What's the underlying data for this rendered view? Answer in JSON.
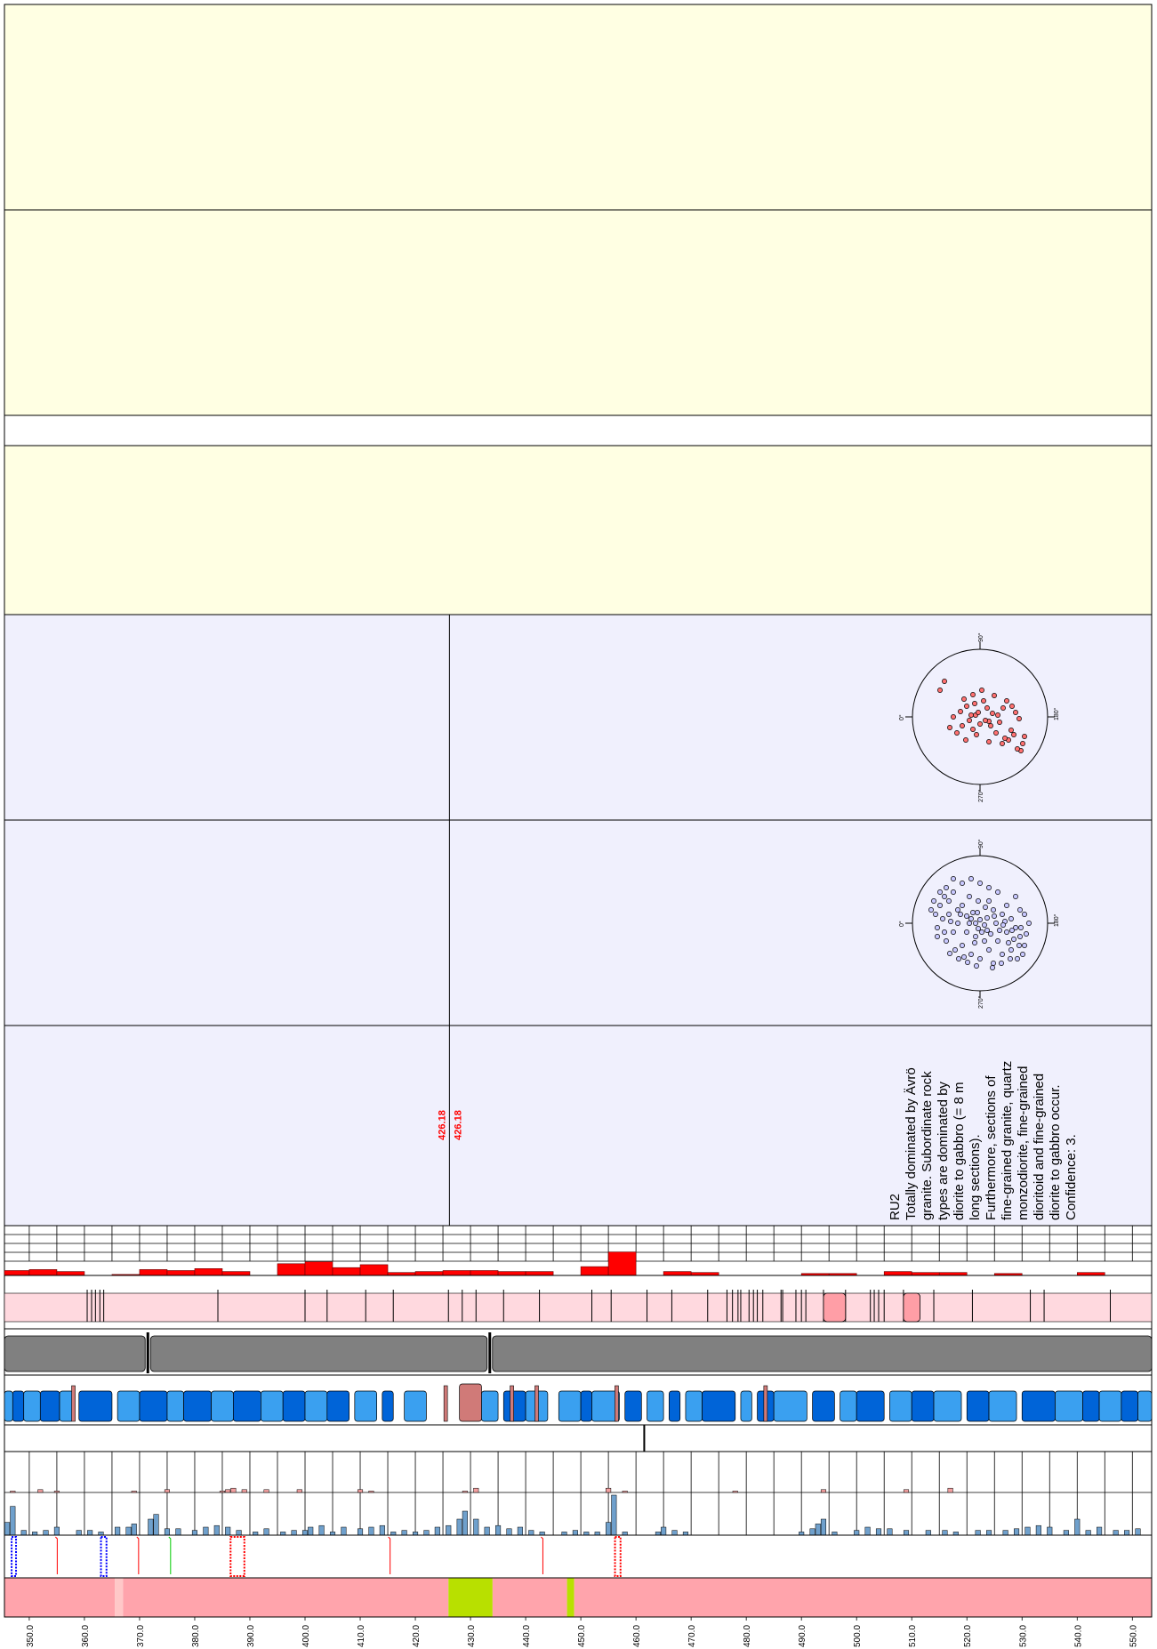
{
  "colors": {
    "yellow_panel": "#ffffe3",
    "lilac_panel": "#f0f0fd",
    "red_bar": "#ff0000",
    "pink_band": "#ffd9df",
    "pink_segment": "#ff9ea6",
    "grey_band": "#808080",
    "blue_dark": "#0064d8",
    "blue_light": "#3aa0f0",
    "brown_segment": "#d07a78",
    "hist_blue": "#6fa0cc",
    "hist_red": "#f3a0a0",
    "rock_pink": "#ffa4ac",
    "rock_green": "#b8e000",
    "rock_light": "#ffc8c8"
  },
  "marker_label": "426.18",
  "rock_unit_text": [
    "RU2",
    "Totally dominated by Ävrö",
    "granite. Subordinate rock",
    "types are dominated by",
    "diorite to gabbro (= 8 m",
    "long sections).",
    "Furthermore, sections of",
    "fine-grained granite, quartz",
    "monzodiorite, fine-grained",
    "dioritoid and fine-grained",
    "diorite to gabbro occur.",
    "Confidence: 3."
  ],
  "stereonet_labels": {
    "north": "90°",
    "west": "0°",
    "east": "180°",
    "south": "270°"
  },
  "chart_data": {
    "type": "log",
    "depth_axis": {
      "unit": "m",
      "range": [
        345.5,
        553.5
      ],
      "ticks": [
        "350.0",
        "360.0",
        "370.0",
        "380.0",
        "390.0",
        "400.0",
        "410.0",
        "420.0",
        "430.0",
        "440.0",
        "450.0",
        "460.0",
        "470.0",
        "480.0",
        "490.0",
        "500.0",
        "510.0",
        "520.0",
        "530.0",
        "540.0",
        "550.0"
      ]
    },
    "marker_depth": 426.18,
    "red_frequency": [
      {
        "from": 345.5,
        "to": 350,
        "v": 0.25
      },
      {
        "from": 350,
        "to": 355,
        "v": 0.3
      },
      {
        "from": 355,
        "to": 360,
        "v": 0.2
      },
      {
        "from": 365,
        "to": 370,
        "v": 0.05
      },
      {
        "from": 370,
        "to": 375,
        "v": 0.3
      },
      {
        "from": 375,
        "to": 380,
        "v": 0.25
      },
      {
        "from": 380,
        "to": 385,
        "v": 0.35
      },
      {
        "from": 385,
        "to": 390,
        "v": 0.2
      },
      {
        "from": 395,
        "to": 400,
        "v": 0.6
      },
      {
        "from": 400,
        "to": 405,
        "v": 0.7
      },
      {
        "from": 405,
        "to": 410,
        "v": 0.4
      },
      {
        "from": 410,
        "to": 415,
        "v": 0.55
      },
      {
        "from": 415,
        "to": 420,
        "v": 0.15
      },
      {
        "from": 420,
        "to": 425,
        "v": 0.2
      },
      {
        "from": 425,
        "to": 430,
        "v": 0.25
      },
      {
        "from": 430,
        "to": 435,
        "v": 0.25
      },
      {
        "from": 435,
        "to": 440,
        "v": 0.2
      },
      {
        "from": 440,
        "to": 445,
        "v": 0.2
      },
      {
        "from": 450,
        "to": 455,
        "v": 0.45
      },
      {
        "from": 455,
        "to": 460,
        "v": 1.2
      },
      {
        "from": 465,
        "to": 470,
        "v": 0.2
      },
      {
        "from": 470,
        "to": 475,
        "v": 0.15
      },
      {
        "from": 490,
        "to": 495,
        "v": 0.1
      },
      {
        "from": 495,
        "to": 500,
        "v": 0.1
      },
      {
        "from": 505,
        "to": 510,
        "v": 0.2
      },
      {
        "from": 510,
        "to": 515,
        "v": 0.15
      },
      {
        "from": 515,
        "to": 520,
        "v": 0.15
      },
      {
        "from": 525,
        "to": 530,
        "v": 0.1
      },
      {
        "from": 540,
        "to": 545,
        "v": 0.15
      }
    ],
    "stereonet_red_poles": [
      [
        38,
        20
      ],
      [
        32,
        26
      ],
      [
        10,
        5
      ],
      [
        -5,
        -2
      ],
      [
        0,
        8
      ],
      [
        -20,
        10
      ],
      [
        -15,
        -12
      ],
      [
        -8,
        -25
      ],
      [
        4,
        -18
      ],
      [
        14,
        -4
      ],
      [
        22,
        6
      ],
      [
        26,
        -10
      ],
      [
        40,
        -5
      ],
      [
        44,
        2
      ],
      [
        35,
        15
      ],
      [
        18,
        18
      ],
      [
        -4,
        20
      ],
      [
        -22,
        -6
      ],
      [
        8,
        -10
      ],
      [
        -12,
        4
      ],
      [
        -30,
        0
      ],
      [
        -45,
        -30
      ],
      [
        -40,
        -40
      ],
      [
        25,
        30
      ],
      [
        -2,
        -5
      ],
      [
        6,
        4
      ],
      [
        -10,
        -2
      ],
      [
        12,
        10
      ],
      [
        30,
        -18
      ],
      [
        -16,
        26
      ],
      [
        2,
        -30
      ],
      [
        -26,
        18
      ],
      [
        16,
        -24
      ],
      [
        48,
        30
      ],
      [
        46,
        38
      ],
      [
        42,
        36
      ],
      [
        36,
        -12
      ],
      [
        -6,
        -15
      ],
      [
        20,
        -2
      ],
      [
        -18,
        -20
      ],
      [
        10,
        28
      ],
      [
        -8,
        14
      ],
      [
        50,
        22
      ],
      [
        28,
        24
      ],
      [
        -34,
        12
      ]
    ],
    "stereonet_blue_poles": [
      [
        -40,
        -30
      ],
      [
        -45,
        -20
      ],
      [
        -50,
        -10
      ],
      [
        -38,
        -40
      ],
      [
        -30,
        -35
      ],
      [
        -20,
        -20
      ],
      [
        -10,
        -5
      ],
      [
        -5,
        0
      ],
      [
        0,
        -4
      ],
      [
        5,
        2
      ],
      [
        8,
        -6
      ],
      [
        -2,
        6
      ],
      [
        -8,
        -12
      ],
      [
        -15,
        -8
      ],
      [
        -25,
        -15
      ],
      [
        -35,
        -25
      ],
      [
        -42,
        -5
      ],
      [
        -48,
        5
      ],
      [
        -52,
        -25
      ],
      [
        -30,
        10
      ],
      [
        -20,
        25
      ],
      [
        -10,
        35
      ],
      [
        0,
        40
      ],
      [
        10,
        30
      ],
      [
        20,
        20
      ],
      [
        30,
        10
      ],
      [
        40,
        5
      ],
      [
        45,
        15
      ],
      [
        50,
        25
      ],
      [
        48,
        35
      ],
      [
        42,
        40
      ],
      [
        35,
        30
      ],
      [
        25,
        35
      ],
      [
        15,
        45
      ],
      [
        5,
        20
      ],
      [
        -5,
        15
      ],
      [
        -15,
        10
      ],
      [
        -25,
        0
      ],
      [
        -35,
        -10
      ],
      [
        -45,
        -35
      ],
      [
        -55,
        -15
      ],
      [
        30,
        -20
      ],
      [
        40,
        -30
      ],
      [
        50,
        -10
      ],
      [
        55,
        0
      ],
      [
        20,
        -35
      ],
      [
        10,
        -40
      ],
      [
        0,
        -45
      ],
      [
        -10,
        -50
      ],
      [
        -20,
        -45
      ],
      [
        -30,
        -50
      ],
      [
        25,
        -10
      ],
      [
        35,
        -5
      ],
      [
        45,
        -15
      ],
      [
        15,
        -15
      ],
      [
        10,
        -25
      ],
      [
        -2,
        -25
      ],
      [
        -12,
        -30
      ],
      [
        2,
        10
      ],
      [
        12,
        12
      ],
      [
        22,
        8
      ],
      [
        32,
        22
      ],
      [
        38,
        18
      ],
      [
        28,
        -2
      ],
      [
        18,
        0
      ],
      [
        8,
        8
      ],
      [
        -6,
        22
      ],
      [
        -18,
        38
      ],
      [
        -28,
        30
      ],
      [
        -38,
        20
      ],
      [
        -48,
        15
      ],
      [
        -40,
        10
      ],
      [
        -33,
        -2
      ],
      [
        -22,
        -10
      ],
      [
        -12,
        0
      ],
      [
        -3,
        -12
      ],
      [
        6,
        -18
      ],
      [
        16,
        -8
      ],
      [
        26,
        2
      ],
      [
        36,
        8
      ],
      [
        46,
        5
      ],
      [
        52,
        12
      ],
      [
        44,
        25
      ],
      [
        34,
        40
      ],
      [
        24,
        45
      ],
      [
        14,
        50
      ],
      [
        -4,
        48
      ],
      [
        -14,
        44
      ],
      [
        -24,
        40
      ],
      [
        -34,
        34
      ]
    ],
    "pink_ticks": [
      360.5,
      361.3,
      362.0,
      362.8,
      363.5,
      384.2,
      400.0,
      404.0,
      411.0,
      416.0,
      426.0,
      428.5,
      431.0,
      436.0,
      442.5,
      452.0,
      455.5,
      462.0,
      466.5,
      473.0,
      476.5,
      477.5,
      478.5,
      479.0,
      480.5,
      481.3,
      482.0,
      483.0,
      486.3,
      486.6,
      489.0,
      490.0,
      490.8,
      494.0,
      498.0,
      502.5,
      503.2,
      504.0,
      505.0,
      508.5,
      514.0,
      521.0,
      531.5,
      534.0,
      546.0
    ],
    "pink_blocks": [
      [
        494.0,
        498.0
      ],
      [
        508.5,
        511.5
      ]
    ],
    "grey_break_depths": [
      371.5,
      433.5
    ],
    "blue_segments": [
      [
        345.5,
        347.0,
        "light"
      ],
      [
        347.0,
        349.0,
        "dark"
      ],
      [
        349.0,
        352.0,
        "light"
      ],
      [
        352.0,
        355.5,
        "dark"
      ],
      [
        355.5,
        358.0,
        "light"
      ],
      [
        359.0,
        365.0,
        "dark"
      ],
      [
        366.0,
        370.0,
        "light"
      ],
      [
        370.0,
        375.0,
        "dark"
      ],
      [
        375.0,
        378.0,
        "light"
      ],
      [
        378.0,
        383.0,
        "dark"
      ],
      [
        383.0,
        387.0,
        "light"
      ],
      [
        387.0,
        392.0,
        "dark"
      ],
      [
        392.0,
        396.0,
        "light"
      ],
      [
        396.0,
        400.0,
        "dark"
      ],
      [
        400.0,
        404.0,
        "light"
      ],
      [
        404.0,
        408.0,
        "dark"
      ],
      [
        409.0,
        413.0,
        "light"
      ],
      [
        414.0,
        416.0,
        "dark"
      ],
      [
        418.0,
        422.0,
        "light"
      ],
      [
        428.0,
        432.0,
        "brown"
      ],
      [
        432.0,
        435.0,
        "light"
      ],
      [
        436.0,
        440.0,
        "dark"
      ],
      [
        440.0,
        444.0,
        "light"
      ],
      [
        446.0,
        450.0,
        "light"
      ],
      [
        450.0,
        452.0,
        "dark"
      ],
      [
        452.0,
        457.0,
        "light"
      ],
      [
        458.0,
        461.0,
        "dark"
      ],
      [
        462.0,
        465.0,
        "light"
      ],
      [
        466.0,
        468.0,
        "dark"
      ],
      [
        469.0,
        472.0,
        "light"
      ],
      [
        472.0,
        478.0,
        "dark"
      ],
      [
        479.0,
        481.0,
        "light"
      ],
      [
        482.0,
        485.0,
        "dark"
      ],
      [
        485.0,
        491.0,
        "light"
      ],
      [
        492.0,
        496.0,
        "dark"
      ],
      [
        497.0,
        500.0,
        "light"
      ],
      [
        500.0,
        505.0,
        "dark"
      ],
      [
        506.0,
        510.0,
        "light"
      ],
      [
        510.0,
        514.0,
        "dark"
      ],
      [
        514.0,
        519.0,
        "light"
      ],
      [
        520.0,
        524.0,
        "dark"
      ],
      [
        524.0,
        529.0,
        "light"
      ],
      [
        530.0,
        536.0,
        "dark"
      ],
      [
        536.0,
        541.0,
        "light"
      ],
      [
        541.0,
        544.0,
        "dark"
      ],
      [
        544.0,
        548.0,
        "light"
      ],
      [
        548.0,
        551.0,
        "dark"
      ],
      [
        551.0,
        553.5,
        "light"
      ]
    ],
    "blue_brown_ticks": [
      358.0,
      425.5,
      437.5,
      442.0,
      456.5,
      483.5
    ],
    "vertical_divider_depth": 461.5,
    "hist_blue": [
      [
        346,
        8
      ],
      [
        347,
        18
      ],
      [
        349,
        3
      ],
      [
        351,
        2
      ],
      [
        353,
        3
      ],
      [
        355,
        5
      ],
      [
        359,
        3
      ],
      [
        361,
        3
      ],
      [
        363,
        2
      ],
      [
        366,
        5
      ],
      [
        368,
        5
      ],
      [
        369,
        7
      ],
      [
        372,
        10
      ],
      [
        373,
        13
      ],
      [
        375,
        4
      ],
      [
        377,
        4
      ],
      [
        380,
        3
      ],
      [
        382,
        5
      ],
      [
        384,
        6
      ],
      [
        386,
        5
      ],
      [
        388,
        3
      ],
      [
        391,
        2
      ],
      [
        393,
        4
      ],
      [
        396,
        2
      ],
      [
        398,
        3
      ],
      [
        400,
        3
      ],
      [
        401,
        5
      ],
      [
        403,
        6
      ],
      [
        405,
        2
      ],
      [
        407,
        5
      ],
      [
        410,
        4
      ],
      [
        412,
        5
      ],
      [
        414,
        6
      ],
      [
        416,
        2
      ],
      [
        418,
        3
      ],
      [
        420,
        2
      ],
      [
        422,
        3
      ],
      [
        424,
        5
      ],
      [
        426,
        6
      ],
      [
        428,
        10
      ],
      [
        429,
        15
      ],
      [
        431,
        10
      ],
      [
        433,
        5
      ],
      [
        435,
        6
      ],
      [
        437,
        4
      ],
      [
        439,
        5
      ],
      [
        441,
        3
      ],
      [
        443,
        2
      ],
      [
        447,
        2
      ],
      [
        449,
        3
      ],
      [
        451,
        2
      ],
      [
        453,
        2
      ],
      [
        455,
        8
      ],
      [
        456,
        25
      ],
      [
        458,
        2
      ],
      [
        464,
        2
      ],
      [
        465,
        5
      ],
      [
        467,
        3
      ],
      [
        469,
        2
      ],
      [
        490,
        2
      ],
      [
        492,
        4
      ],
      [
        493,
        7
      ],
      [
        494,
        10
      ],
      [
        496,
        2
      ],
      [
        500,
        3
      ],
      [
        502,
        5
      ],
      [
        504,
        4
      ],
      [
        506,
        4
      ],
      [
        509,
        3
      ],
      [
        513,
        3
      ],
      [
        516,
        3
      ],
      [
        518,
        2
      ],
      [
        522,
        3
      ],
      [
        524,
        3
      ],
      [
        527,
        3
      ],
      [
        529,
        4
      ],
      [
        531,
        5
      ],
      [
        533,
        6
      ],
      [
        535,
        5
      ],
      [
        538,
        3
      ],
      [
        540,
        10
      ],
      [
        542,
        3
      ],
      [
        544,
        5
      ],
      [
        547,
        3
      ],
      [
        549,
        3
      ],
      [
        551,
        4
      ]
    ],
    "hist_red": [
      [
        347,
        1
      ],
      [
        352,
        2
      ],
      [
        355,
        1
      ],
      [
        369,
        1
      ],
      [
        375,
        2
      ],
      [
        385,
        1
      ],
      [
        386,
        2
      ],
      [
        387,
        3
      ],
      [
        389,
        2
      ],
      [
        393,
        2
      ],
      [
        399,
        2
      ],
      [
        410,
        2
      ],
      [
        412,
        1
      ],
      [
        429,
        1
      ],
      [
        431,
        3
      ],
      [
        455,
        3
      ],
      [
        458,
        1
      ],
      [
        478,
        1
      ],
      [
        494,
        2
      ],
      [
        509,
        2
      ],
      [
        517,
        3
      ]
    ],
    "fracture_zones": [
      {
        "from": 346.8,
        "to": 347.6,
        "color": "#0000ff",
        "style": "dense"
      },
      {
        "from": 363.0,
        "to": 364.0,
        "color": "#0000ff",
        "style": "dense"
      },
      {
        "from": 354.5,
        "to": 355.0,
        "color": "#ff0000",
        "style": "wave"
      },
      {
        "from": 369.2,
        "to": 369.8,
        "color": "#ff0000",
        "style": "wave"
      },
      {
        "from": 375.0,
        "to": 375.6,
        "color": "#00cc00",
        "style": "wave"
      },
      {
        "from": 386.5,
        "to": 389.0,
        "color": "#ff0000",
        "style": "dense"
      },
      {
        "from": 414.8,
        "to": 415.4,
        "color": "#ff0000",
        "style": "wave"
      },
      {
        "from": 442.5,
        "to": 443.1,
        "color": "#ff0000",
        "style": "wave"
      },
      {
        "from": 456.2,
        "to": 457.2,
        "color": "#ff0000",
        "style": "dense"
      }
    ],
    "rock_units": [
      {
        "from": 345.5,
        "to": 365.5,
        "color": "#ffa4ac"
      },
      {
        "from": 365.5,
        "to": 367.0,
        "color": "#ffc8c8"
      },
      {
        "from": 367.0,
        "to": 426.0,
        "color": "#ffa4ac"
      },
      {
        "from": 426.0,
        "to": 434.0,
        "color": "#b8e000"
      },
      {
        "from": 434.0,
        "to": 447.5,
        "color": "#ffa4ac"
      },
      {
        "from": 447.5,
        "to": 448.8,
        "color": "#b8e000"
      },
      {
        "from": 448.8,
        "to": 553.5,
        "color": "#ffa4ac"
      }
    ]
  }
}
